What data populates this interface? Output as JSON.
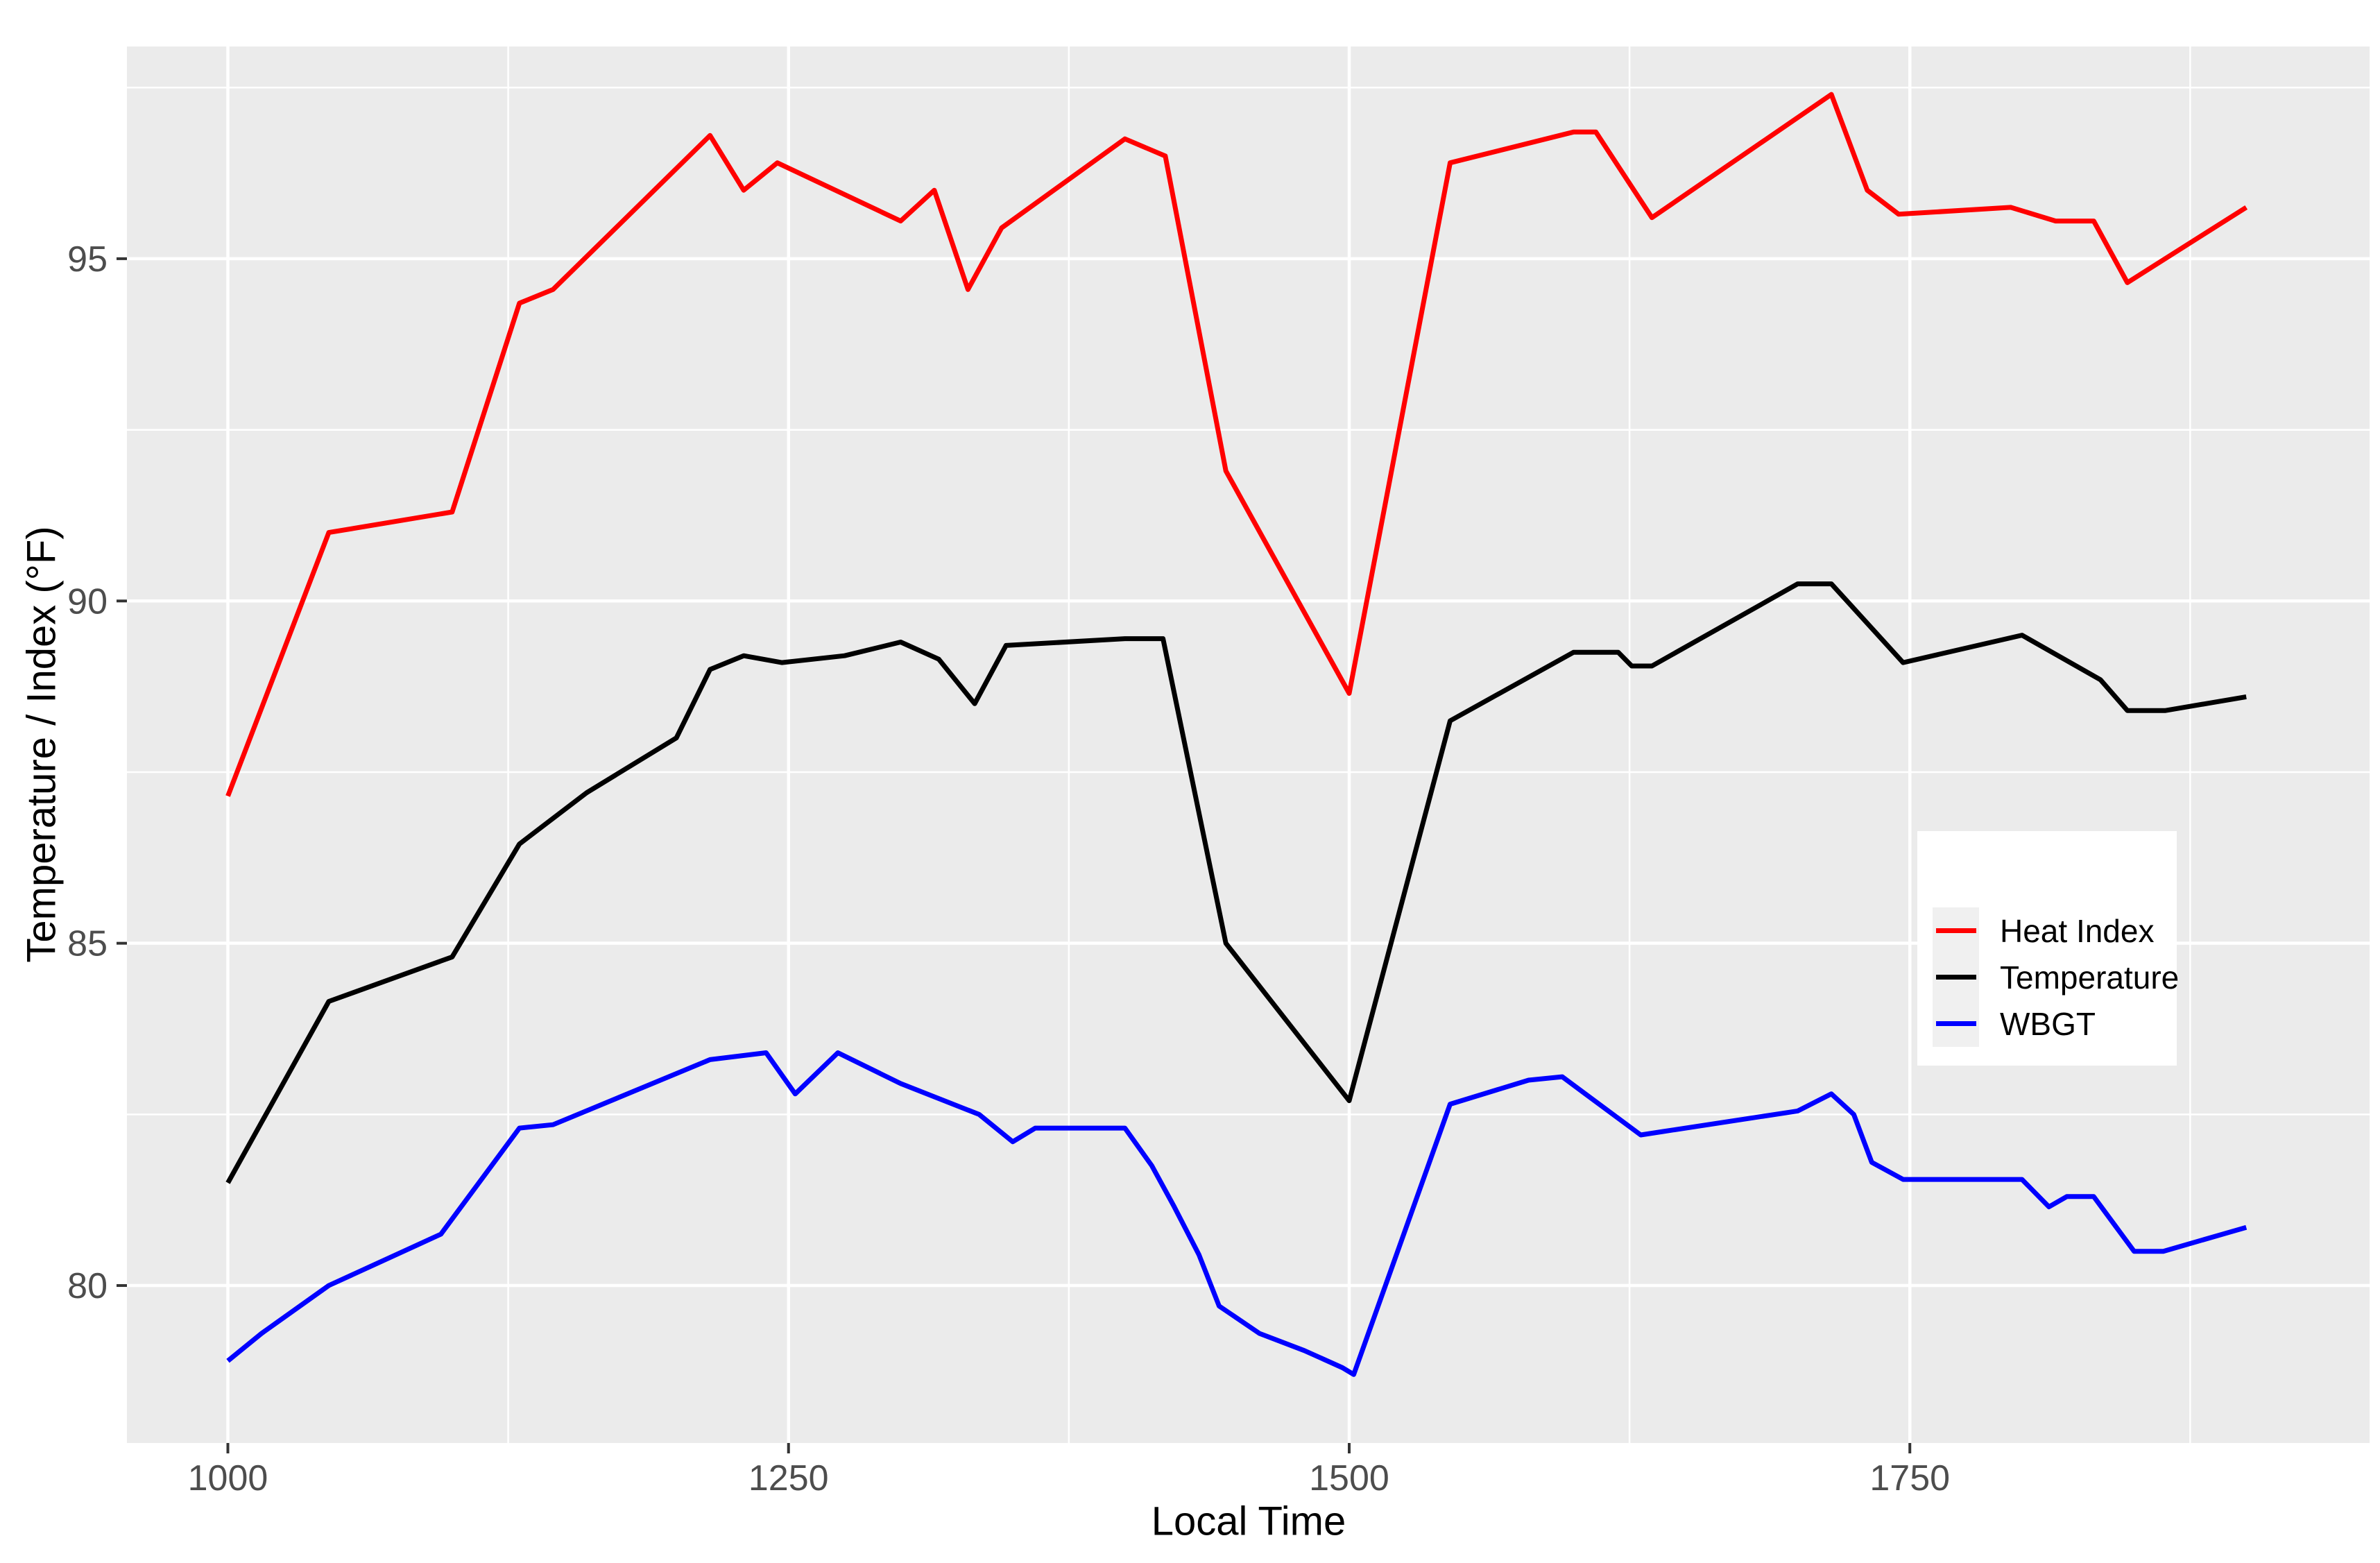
{
  "chart_data": {
    "type": "line",
    "title": "",
    "xlabel": "Local Time",
    "ylabel": "Temperature / Index (°F)",
    "xlim": [
      955,
      1955
    ],
    "ylim": [
      77.7,
      98.1
    ],
    "x_ticks": [
      1000,
      1250,
      1500,
      1750
    ],
    "x_minor_ticks": [
      1125,
      1375,
      1625,
      1875
    ],
    "y_ticks": [
      80,
      85,
      90,
      95
    ],
    "y_minor_ticks": [
      82.5,
      87.5,
      92.5,
      97.5
    ],
    "grid": true,
    "legend_position": "inside-right",
    "panel_background": "#EBEBEB",
    "grid_color": "#FFFFFF",
    "tick_label_color": "#4D4D4D",
    "series": [
      {
        "name": "Heat Index",
        "color": "#FF0000",
        "x": [
          1000,
          1045,
          1100,
          1130,
          1145,
          1215,
          1230,
          1245,
          1300,
          1315,
          1330,
          1345,
          1400,
          1418,
          1445,
          1500,
          1545,
          1600,
          1610,
          1626,
          1635,
          1715,
          1731,
          1745,
          1795,
          1815,
          1832,
          1847,
          1900
        ],
        "y": [
          87.15,
          91.0,
          91.3,
          94.35,
          94.55,
          96.8,
          96.0,
          96.4,
          95.55,
          96.0,
          94.55,
          95.45,
          96.75,
          96.5,
          91.9,
          88.65,
          96.4,
          96.85,
          96.85,
          96.05,
          95.6,
          97.4,
          96.0,
          95.65,
          95.75,
          95.55,
          95.55,
          94.65,
          95.75
        ]
      },
      {
        "name": "Temperature",
        "color": "#000000",
        "x": [
          1000,
          1045,
          1100,
          1130,
          1160,
          1200,
          1215,
          1230,
          1247,
          1275,
          1300,
          1317,
          1333,
          1347,
          1400,
          1417,
          1445,
          1500,
          1545,
          1600,
          1620,
          1626,
          1635,
          1700,
          1715,
          1747,
          1800,
          1835,
          1847,
          1864,
          1900
        ],
        "y": [
          81.5,
          84.15,
          84.8,
          86.45,
          87.2,
          88.0,
          89.0,
          89.2,
          89.1,
          89.2,
          89.4,
          89.15,
          88.5,
          89.35,
          89.45,
          89.45,
          85.0,
          82.7,
          88.25,
          89.25,
          89.25,
          89.05,
          89.05,
          90.25,
          90.25,
          89.1,
          89.5,
          88.85,
          88.4,
          88.4,
          88.6
        ]
      },
      {
        "name": "WBGT",
        "color": "#0000FF",
        "x": [
          1000,
          1015,
          1045,
          1065,
          1085,
          1095,
          1130,
          1145,
          1215,
          1240,
          1253,
          1272,
          1300,
          1335,
          1350,
          1360,
          1400,
          1412,
          1422,
          1433,
          1442,
          1460,
          1480,
          1497,
          1502,
          1545,
          1580,
          1595,
          1630,
          1640,
          1700,
          1715,
          1725,
          1733,
          1747,
          1800,
          1812,
          1820,
          1832,
          1850,
          1863,
          1900
        ],
        "y": [
          78.9,
          79.3,
          80.0,
          80.3,
          80.6,
          80.75,
          82.3,
          82.35,
          83.3,
          83.4,
          82.8,
          83.4,
          82.95,
          82.5,
          82.1,
          82.3,
          82.3,
          81.75,
          81.15,
          80.45,
          79.7,
          79.3,
          79.05,
          78.8,
          78.7,
          82.65,
          83.0,
          83.05,
          82.2,
          82.25,
          82.55,
          82.8,
          82.5,
          81.8,
          81.55,
          81.55,
          81.15,
          81.3,
          81.3,
          80.5,
          80.5,
          80.85
        ]
      }
    ]
  },
  "legend": {
    "items": [
      "Heat Index",
      "Temperature",
      "WBGT"
    ]
  }
}
